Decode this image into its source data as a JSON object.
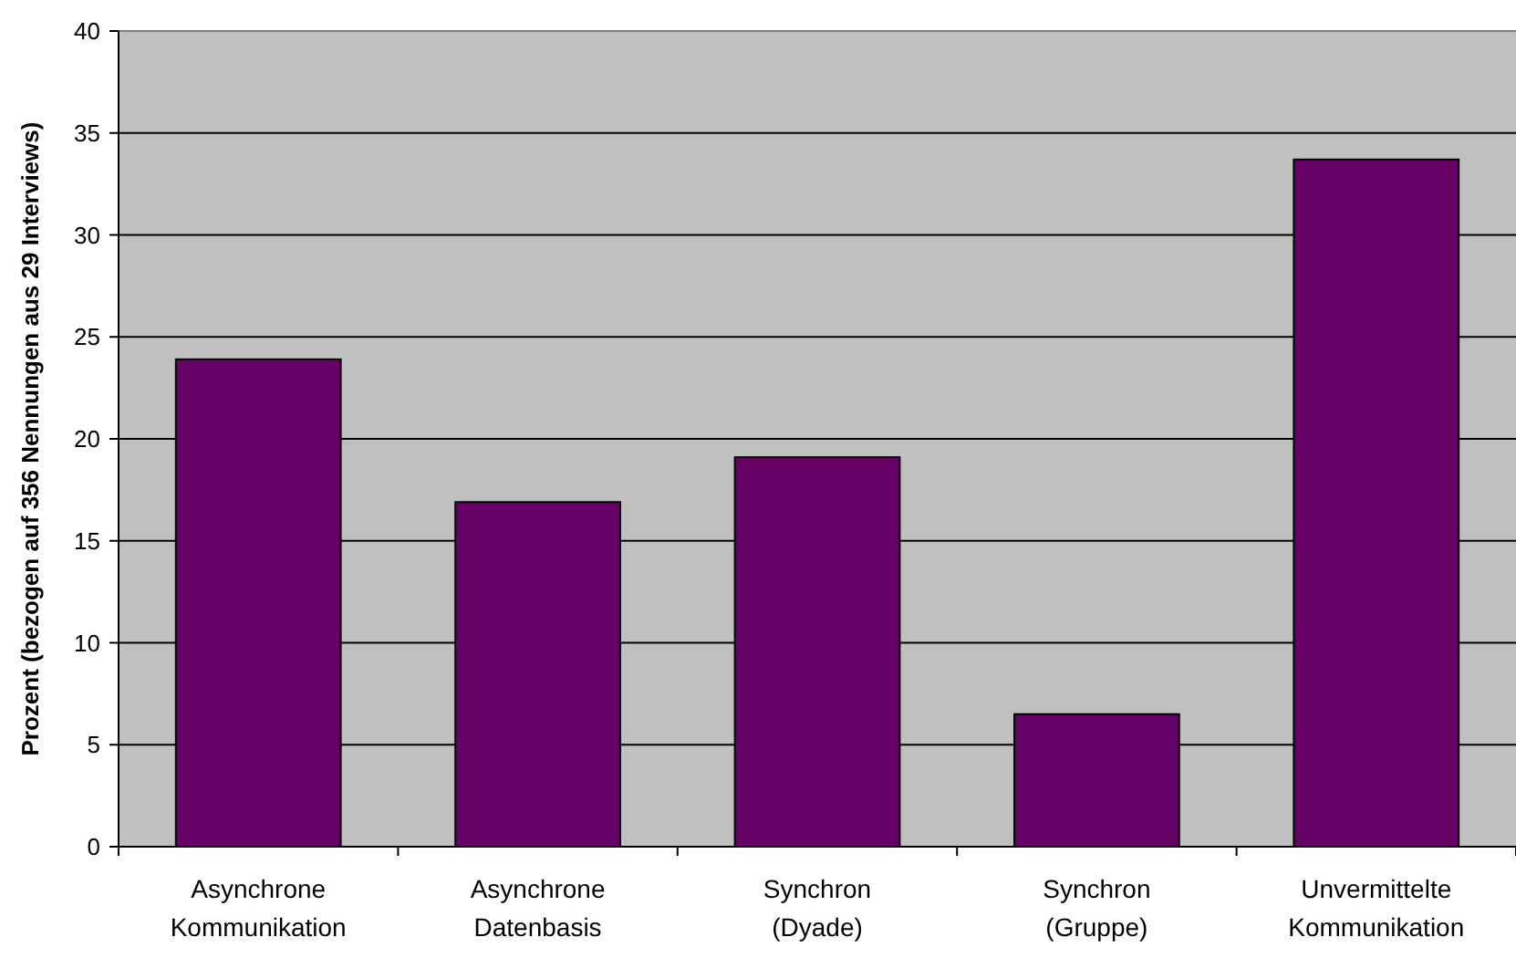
{
  "chart_data": {
    "type": "bar",
    "ylabel": "Prozent (bezogen auf 356 Nennungen aus 29 Interviews)",
    "categories": [
      "Asynchrone Kommunikation",
      "Asynchrone Datenbasis",
      "Synchron (Dyade)",
      "Synchron (Gruppe)",
      "Unvermittelte Kommunikation"
    ],
    "values": [
      23.9,
      16.9,
      19.1,
      6.5,
      33.7
    ],
    "color": "#660066",
    "ylim": [
      0,
      40
    ],
    "yticks": [
      0,
      5,
      10,
      15,
      20,
      25,
      30,
      35,
      40
    ],
    "grid": "y"
  }
}
